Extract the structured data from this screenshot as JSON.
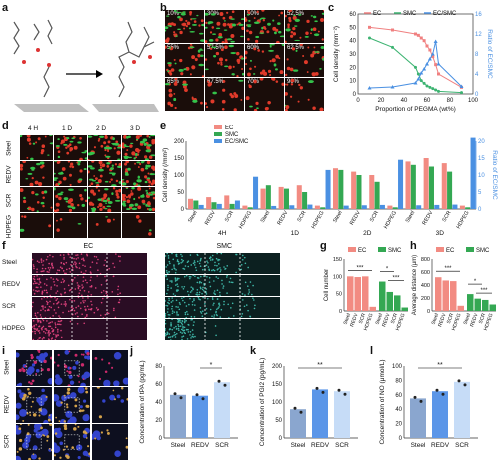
{
  "panel_labels": [
    "a",
    "b",
    "c",
    "d",
    "e",
    "f",
    "g",
    "h",
    "i",
    "j",
    "k",
    "l"
  ],
  "panel_b": {
    "tiles": [
      "10%",
      "30%",
      "50%",
      "52.5%",
      "55%",
      "57.5%",
      "60%",
      "62.5%",
      "65%",
      "67.5%",
      "70%",
      "90%"
    ]
  },
  "panel_c": {
    "chart_data": {
      "type": "line",
      "xlabel": "Proportion of PEGMA (wt%)",
      "ylabel": "Cell density (mm⁻²)",
      "y2label": "Ratio of EC/SMC",
      "xlim": [
        0,
        100
      ],
      "ylim": [
        0,
        60
      ],
      "y2lim": [
        0,
        16
      ],
      "xticks": [
        "0",
        "20",
        "40",
        "60",
        "80",
        "100"
      ],
      "yticks": [
        "0",
        "10",
        "20",
        "30",
        "40",
        "50",
        "60"
      ],
      "y2ticks": [
        "0",
        "4",
        "8",
        "12",
        "16"
      ],
      "series": [
        {
          "name": "EC",
          "color": "#f08080",
          "x": [
            10,
            30,
            50,
            52.5,
            55,
            57.5,
            60,
            62.5,
            65,
            67.5,
            70,
            90
          ],
          "y": [
            50,
            48,
            45,
            44,
            42,
            40,
            36,
            33,
            28,
            22,
            15,
            5
          ]
        },
        {
          "name": "SMC",
          "color": "#3cb371",
          "x": [
            10,
            30,
            50,
            52.5,
            55,
            57.5,
            60,
            62.5,
            65,
            67.5,
            70,
            90
          ],
          "y": [
            42,
            35,
            20,
            15,
            10,
            8,
            6,
            5,
            4,
            3,
            2,
            1
          ]
        },
        {
          "name": "EC/SMC",
          "color": "#4a90e2",
          "axis": "right",
          "x": [
            10,
            30,
            50,
            52.5,
            55,
            57.5,
            60,
            62.5,
            65,
            67.5,
            70,
            90
          ],
          "y": [
            1.2,
            1.4,
            2.2,
            3,
            4.2,
            5,
            6,
            7,
            8,
            10.5,
            6,
            1.5
          ]
        }
      ]
    }
  },
  "panel_d": {
    "cols": [
      "4 H",
      "1 D",
      "2 D",
      "3 D"
    ],
    "rows": [
      "Steel",
      "REDV",
      "SCR",
      "HDPEG"
    ]
  },
  "panel_e": {
    "chart_data": {
      "type": "bar",
      "ylabel": "Cell density (/mm²)",
      "y2label": "Ratio of EC/SMC",
      "ylim": [
        0,
        200
      ],
      "y2lim": [
        0,
        20
      ],
      "yticks": [
        "0",
        "50",
        "100",
        "150",
        "200"
      ],
      "y2ticks": [
        "0",
        "5",
        "10",
        "15",
        "20"
      ],
      "groups": [
        "4H",
        "1D",
        "2D",
        "3D"
      ],
      "categories": [
        "Steel",
        "REDV",
        "SCR",
        "HDPEG"
      ],
      "series": [
        {
          "name": "EC",
          "color": "#f28b82",
          "values": [
            [
              30,
              35,
              40,
              10
            ],
            [
              60,
              65,
              70,
              10
            ],
            [
              120,
              110,
              100,
              10
            ],
            [
              140,
              150,
              135,
              10
            ]
          ]
        },
        {
          "name": "SMC",
          "color": "#34a853",
          "values": [
            [
              25,
              20,
              15,
              5
            ],
            [
              70,
              60,
              50,
              5
            ],
            [
              115,
              100,
              80,
              5
            ],
            [
              130,
              125,
              110,
              5
            ]
          ]
        },
        {
          "name": "EC/SMC",
          "color": "#4a90e2",
          "axis": "right",
          "values": [
            [
              1.2,
              1.5,
              2.5,
              9.5
            ],
            [
              0.9,
              1.1,
              1.3,
              11.5
            ],
            [
              1,
              1.1,
              1.2,
              14.5
            ],
            [
              1.1,
              1.2,
              1.3,
              21
            ]
          ]
        }
      ]
    }
  },
  "panel_f": {
    "titles": [
      "EC",
      "SMC"
    ],
    "rows": [
      "Steel",
      "REDV",
      "SCR",
      "HDPEG"
    ]
  },
  "panel_g": {
    "chart_data": {
      "type": "bar",
      "ylabel": "Cell number",
      "ylim": [
        0,
        150
      ],
      "yticks": [
        "0",
        "50",
        "100",
        "150"
      ],
      "groups": [
        "EC",
        "SMC"
      ],
      "categories": [
        "Steel",
        "REDV",
        "SCR",
        "HDPEG"
      ],
      "series": [
        {
          "name": "EC",
          "color": "#f28b82",
          "values": [
            100,
            98,
            100,
            12
          ]
        },
        {
          "name": "SMC",
          "color": "#34a853",
          "values": [
            85,
            55,
            45,
            10
          ]
        }
      ],
      "sig": [
        "***",
        "*",
        "***"
      ]
    }
  },
  "panel_h": {
    "chart_data": {
      "type": "bar",
      "ylabel": "Average distance (μm)",
      "ylim": [
        0,
        800
      ],
      "yticks": [
        "0",
        "200",
        "400",
        "600",
        "800"
      ],
      "groups": [
        "EC",
        "SMC"
      ],
      "categories": [
        "Steel",
        "REDV",
        "SCR",
        "HDPEG"
      ],
      "series": [
        {
          "name": "EC",
          "color": "#f28b82",
          "values": [
            520,
            470,
            460,
            80
          ]
        },
        {
          "name": "SMC",
          "color": "#34a853",
          "values": [
            260,
            190,
            170,
            100
          ]
        }
      ],
      "sig": [
        "***",
        "*",
        "***"
      ]
    }
  },
  "panel_i": {
    "rows": [
      "Steel",
      "REDV",
      "SCR"
    ]
  },
  "panel_j": {
    "chart_data": {
      "type": "bar",
      "ylabel": "Concentration of tPA (pg/mL)",
      "ylim": [
        0,
        80
      ],
      "yticks": [
        "0",
        "20",
        "40",
        "60",
        "80"
      ],
      "categories": [
        "Steel",
        "REDV",
        "SCR"
      ],
      "values": [
        48,
        47,
        62
      ],
      "colors": [
        "#8aa6cf",
        "#5b96e8",
        "#c6dcf7"
      ],
      "sig": [
        "*"
      ]
    }
  },
  "panel_k": {
    "chart_data": {
      "type": "bar",
      "ylabel": "Concentration of PGI2 (pg/mL)",
      "ylim": [
        0,
        200
      ],
      "yticks": [
        "0",
        "50",
        "100",
        "150",
        "200"
      ],
      "categories": [
        "Steel",
        "REDV",
        "SCR"
      ],
      "values": [
        80,
        135,
        130
      ],
      "colors": [
        "#8aa6cf",
        "#5b96e8",
        "#c6dcf7"
      ],
      "sig": [
        "**"
      ]
    }
  },
  "panel_l": {
    "chart_data": {
      "type": "bar",
      "ylabel": "Concentration of NO (μmol/L)",
      "ylim": [
        0,
        100
      ],
      "yticks": [
        "0",
        "20",
        "40",
        "60",
        "80",
        "100"
      ],
      "categories": [
        "Steel",
        "REDV",
        "SCR"
      ],
      "values": [
        55,
        65,
        78
      ],
      "colors": [
        "#8aa6cf",
        "#5b96e8",
        "#c6dcf7"
      ],
      "sig": [
        "**"
      ]
    }
  }
}
